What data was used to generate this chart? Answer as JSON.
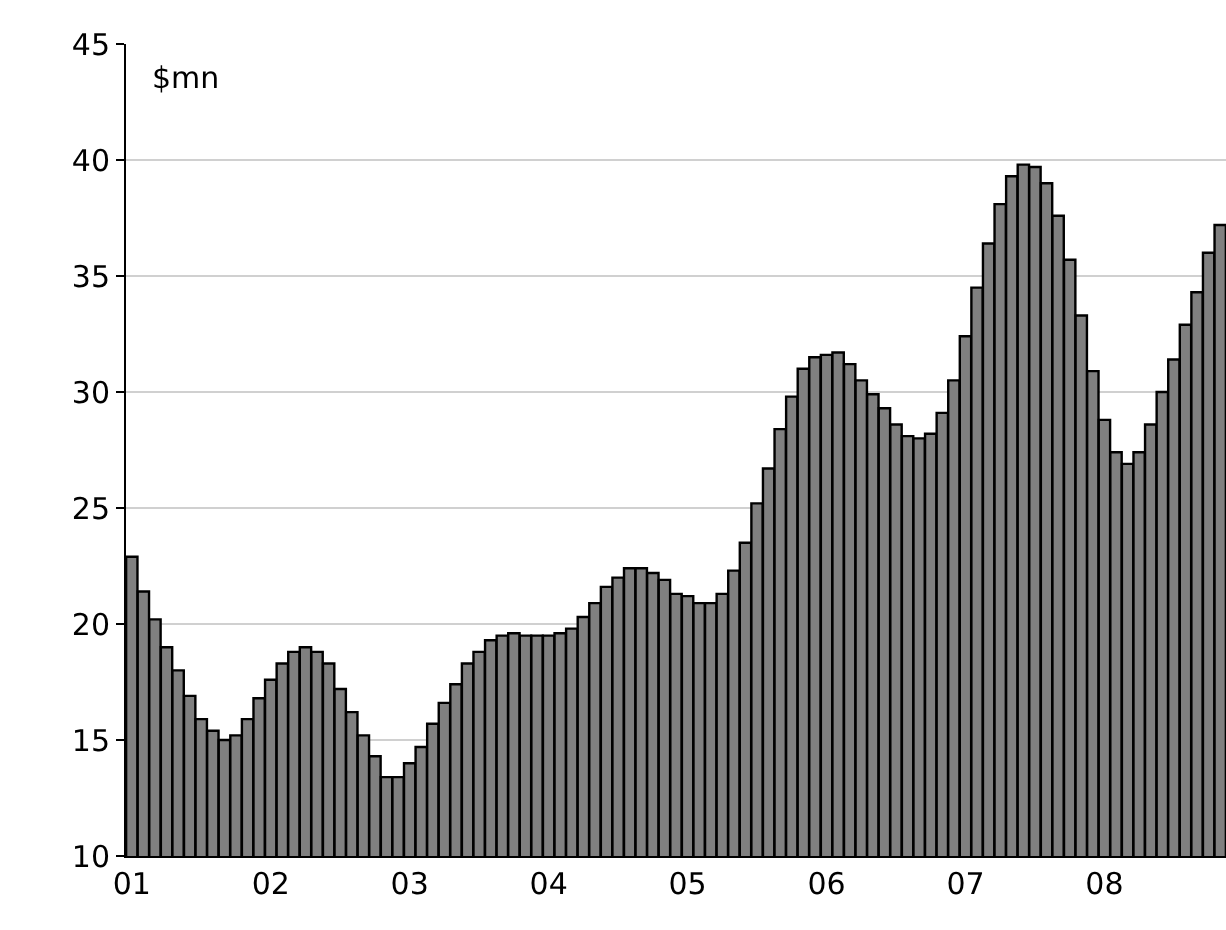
{
  "chart_data": {
    "type": "bar",
    "ylabel": "$mn",
    "categories": [
      "01",
      null,
      null,
      null,
      null,
      null,
      null,
      null,
      null,
      null,
      null,
      null,
      "02",
      null,
      null,
      null,
      null,
      null,
      null,
      null,
      null,
      null,
      null,
      null,
      "03",
      null,
      null,
      null,
      null,
      null,
      null,
      null,
      null,
      null,
      null,
      null,
      "04",
      null,
      null,
      null,
      null,
      null,
      null,
      null,
      null,
      null,
      null,
      null,
      "05",
      null,
      null,
      null,
      null,
      null,
      null,
      null,
      null,
      null,
      null,
      null,
      "06",
      null,
      null,
      null,
      null,
      null,
      null,
      null,
      null,
      null,
      null,
      null,
      "07",
      null,
      null,
      null,
      null,
      null,
      null,
      null,
      null,
      null,
      null,
      null,
      "08",
      null,
      null,
      null,
      null,
      null,
      null,
      null,
      null,
      null,
      null
    ],
    "series": [
      {
        "color": "#808080",
        "values": [
          22.9,
          21.4,
          20.2,
          19.0,
          18.0,
          16.9,
          15.9,
          15.4,
          15.0,
          15.2,
          15.9,
          16.8,
          17.6,
          18.3,
          18.8,
          19.0,
          18.8,
          18.3,
          17.2,
          16.2,
          15.2,
          14.3,
          13.4,
          13.4,
          14.0,
          14.7,
          15.7,
          16.6,
          17.4,
          18.3,
          18.8,
          19.3,
          19.5,
          19.6,
          19.5,
          19.5,
          19.5,
          19.6,
          19.8,
          20.3,
          20.9,
          21.6,
          22.0,
          22.4,
          22.4,
          22.2,
          21.9,
          21.3,
          21.2,
          20.9,
          20.9,
          21.3,
          22.3,
          23.5,
          25.2,
          26.7,
          28.4,
          29.8,
          31.0,
          31.5,
          31.6,
          31.7,
          31.2,
          30.5,
          29.9,
          29.3,
          28.6,
          28.1,
          28.0,
          28.2,
          29.1,
          30.5,
          32.4,
          34.5,
          36.4,
          38.1,
          39.3,
          39.8,
          39.7,
          39.0,
          37.6,
          35.7,
          33.3,
          30.9,
          28.8,
          27.4,
          26.9,
          27.4,
          28.6,
          30.0,
          31.4,
          32.9,
          34.3,
          36.0,
          37.2
        ]
      }
    ],
    "ylim": [
      10,
      45
    ],
    "yticks": [
      10,
      15,
      20,
      25,
      30,
      35,
      40,
      45
    ],
    "grid": "y"
  }
}
